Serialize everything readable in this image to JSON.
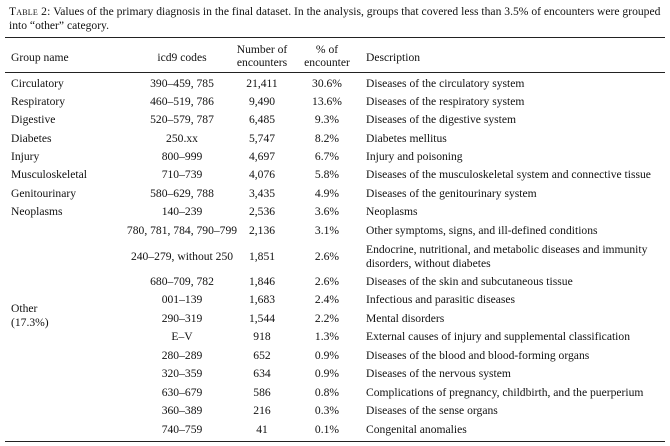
{
  "caption": {
    "label": "Table 2:",
    "text": "Values of the primary diagnosis in the final dataset. In the analysis, groups that covered less than 3.5% of encounters were grouped into “other” category."
  },
  "columns": [
    "Group name",
    "icd9 codes",
    "Number of encounters",
    "% of encounter",
    "Description"
  ],
  "other_group": {
    "name": "Other",
    "share": "(17.3%)"
  },
  "rows": [
    {
      "group": "Circulatory",
      "icd9": "390–459, 785",
      "count": "21,411",
      "pct": "30.6%",
      "desc": "Diseases of the circulatory system"
    },
    {
      "group": "Respiratory",
      "icd9": "460–519, 786",
      "count": "9,490",
      "pct": "13.6%",
      "desc": "Diseases of the respiratory system"
    },
    {
      "group": "Digestive",
      "icd9": "520–579, 787",
      "count": "6,485",
      "pct": "9.3%",
      "desc": "Diseases of the digestive system"
    },
    {
      "group": "Diabetes",
      "icd9": "250.xx",
      "count": "5,747",
      "pct": "8.2%",
      "desc": "Diabetes mellitus"
    },
    {
      "group": "Injury",
      "icd9": "800–999",
      "count": "4,697",
      "pct": "6.7%",
      "desc": "Injury and poisoning"
    },
    {
      "group": "Musculoskeletal",
      "icd9": "710–739",
      "count": "4,076",
      "pct": "5.8%",
      "desc": "Diseases of the musculoskeletal system and connective tissue"
    },
    {
      "group": "Genitourinary",
      "icd9": "580–629, 788",
      "count": "3,435",
      "pct": "4.9%",
      "desc": "Diseases of the genitourinary system"
    },
    {
      "group": "Neoplasms",
      "icd9": "140–239",
      "count": "2,536",
      "pct": "3.6%",
      "desc": "Neoplasms"
    },
    {
      "group": "",
      "icd9": "780, 781, 784, 790–799",
      "count": "2,136",
      "pct": "3.1%",
      "desc": "Other symptoms, signs, and ill-defined conditions"
    },
    {
      "group": "",
      "icd9": "240–279, without 250",
      "count": "1,851",
      "pct": "2.6%",
      "desc": "Endocrine, nutritional, and metabolic diseases and immunity disorders, without diabetes"
    },
    {
      "group": "",
      "icd9": "680–709, 782",
      "count": "1,846",
      "pct": "2.6%",
      "desc": "Diseases of the skin and subcutaneous tissue"
    },
    {
      "group": "",
      "icd9": "001–139",
      "count": "1,683",
      "pct": "2.4%",
      "desc": "Infectious and parasitic diseases"
    },
    {
      "group": "",
      "icd9": "290–319",
      "count": "1,544",
      "pct": "2.2%",
      "desc": "Mental disorders"
    },
    {
      "group": "",
      "icd9": "E–V",
      "count": "918",
      "pct": "1.3%",
      "desc": "External causes of injury and supplemental classification"
    },
    {
      "group": "",
      "icd9": "280–289",
      "count": "652",
      "pct": "0.9%",
      "desc": "Diseases of the blood and blood-forming organs"
    },
    {
      "group": "",
      "icd9": "320–359",
      "count": "634",
      "pct": "0.9%",
      "desc": "Diseases of the nervous system"
    },
    {
      "group": "",
      "icd9": "630–679",
      "count": "586",
      "pct": "0.8%",
      "desc": "Complications of pregnancy, childbirth, and the puerperium"
    },
    {
      "group": "",
      "icd9": "360–389",
      "count": "216",
      "pct": "0.3%",
      "desc": "Diseases of the sense organs"
    },
    {
      "group": "",
      "icd9": "740–759",
      "count": "41",
      "pct": "0.1%",
      "desc": "Congenital anomalies"
    }
  ]
}
